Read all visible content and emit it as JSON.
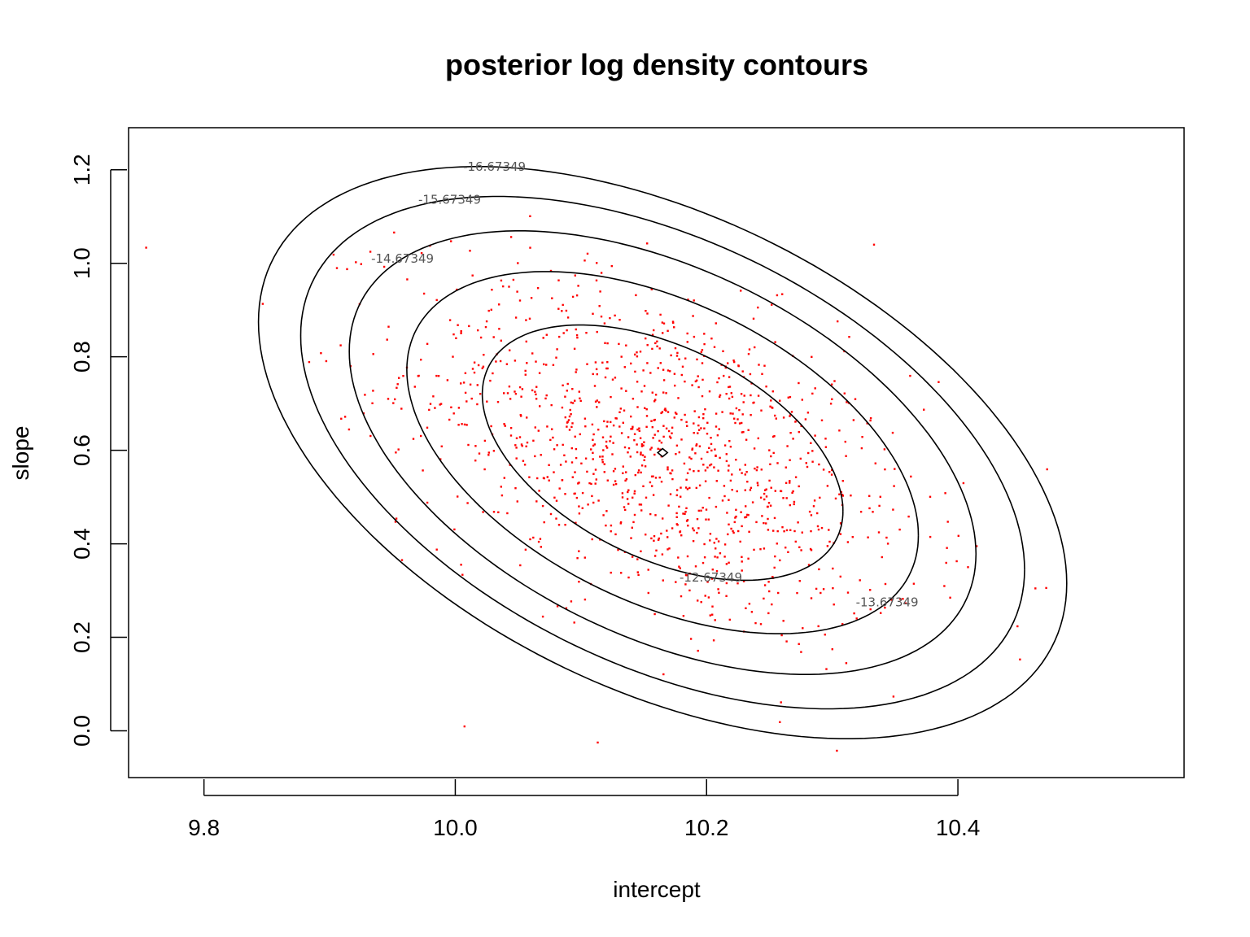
{
  "chart_data": {
    "type": "scatter",
    "title": "posterior log density contours",
    "xlabel": "intercept",
    "ylabel": "slope",
    "xlim": [
      9.74,
      10.58
    ],
    "ylim": [
      -0.1,
      1.29
    ],
    "x_ticks": [
      9.8,
      10.0,
      10.2,
      10.4
    ],
    "x_tick_labels": [
      "9.8",
      "10.0",
      "10.2",
      "10.4"
    ],
    "y_ticks": [
      0.0,
      0.2,
      0.4,
      0.6,
      0.8,
      1.0,
      1.2
    ],
    "y_tick_labels": [
      "0.0",
      "0.2",
      "0.4",
      "0.6",
      "0.8",
      "1.0",
      "1.2"
    ],
    "grid": false,
    "colors": {
      "points": "#ff0000",
      "contours": "#000000",
      "contour_labels": "#555555"
    },
    "mode": {
      "x": 10.165,
      "y": 0.595
    },
    "contour_levels": [
      {
        "level": -12.67349,
        "label": "-12.67349"
      },
      {
        "level": -13.67349,
        "label": "-13.67349"
      },
      {
        "level": -14.67349,
        "label": "-14.67349"
      },
      {
        "level": -15.67349,
        "label": "-15.67349"
      },
      {
        "level": -16.67349,
        "label": "-16.67349"
      }
    ],
    "contours": {
      "center": [
        10.165,
        0.595
      ],
      "cov": [
        [
          0.01036,
          -0.009
        ],
        [
          -0.009,
          0.0375
        ]
      ],
      "mahalanobis_radii": [
        1.41,
        2.0,
        2.45,
        2.83,
        3.16
      ]
    },
    "points": {
      "count": 1200,
      "mean": [
        10.165,
        0.595
      ],
      "cov": [
        [
          0.01036,
          -0.009
        ],
        [
          -0.009,
          0.0375
        ]
      ]
    }
  }
}
